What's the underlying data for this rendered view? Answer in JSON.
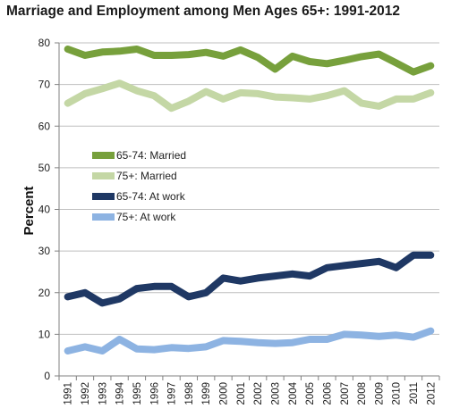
{
  "title": "Marriage and Employment among Men Ages 65+: 1991-2012",
  "chart_data": {
    "type": "line",
    "title": "Marriage and Employment among Men Ages 65+: 1991-2012",
    "xlabel": "",
    "ylabel": "Percent",
    "ylim": [
      0,
      80
    ],
    "yticks": [
      0,
      10,
      20,
      30,
      40,
      50,
      60,
      70,
      80
    ],
    "grid": true,
    "legend_position": "left-center",
    "x": [
      "1991",
      "1992",
      "1993",
      "1994",
      "1995",
      "1996",
      "1997",
      "1998",
      "1999",
      "2000",
      "2001",
      "2002",
      "2003",
      "2004",
      "2005",
      "2006",
      "2007",
      "2008",
      "2009",
      "2010",
      "2011",
      "2012"
    ],
    "series": [
      {
        "name": "65-74: Married",
        "color": "#77a03c",
        "values": [
          78.5,
          77.0,
          77.8,
          78.0,
          78.5,
          77.0,
          77.0,
          77.2,
          77.7,
          76.8,
          78.3,
          76.5,
          73.7,
          76.8,
          75.5,
          75.0,
          75.8,
          76.7,
          77.3,
          75.2,
          73.0,
          74.5
        ]
      },
      {
        "name": "75+: Married",
        "color": "#c4d7a5",
        "values": [
          65.5,
          67.8,
          69.0,
          70.3,
          68.5,
          67.3,
          64.3,
          66.0,
          68.3,
          66.5,
          68.0,
          67.8,
          67.0,
          66.8,
          66.5,
          67.3,
          68.5,
          65.5,
          64.8,
          66.5,
          66.5,
          68.0
        ]
      },
      {
        "name": "65-74: At work",
        "color": "#1f3864",
        "values": [
          19.0,
          20.0,
          17.5,
          18.5,
          21.0,
          21.5,
          21.5,
          19.0,
          20.0,
          23.5,
          22.8,
          23.5,
          24.0,
          24.5,
          24.0,
          26.0,
          26.5,
          27.0,
          27.5,
          26.0,
          29.0,
          29.0
        ]
      },
      {
        "name": "75+: At work",
        "color": "#8db3e2",
        "values": [
          6.0,
          7.0,
          6.0,
          8.8,
          6.5,
          6.3,
          6.8,
          6.6,
          7.0,
          8.5,
          8.3,
          8.0,
          7.8,
          8.0,
          8.8,
          8.8,
          10.0,
          9.8,
          9.5,
          9.8,
          9.3,
          10.8
        ]
      }
    ]
  }
}
